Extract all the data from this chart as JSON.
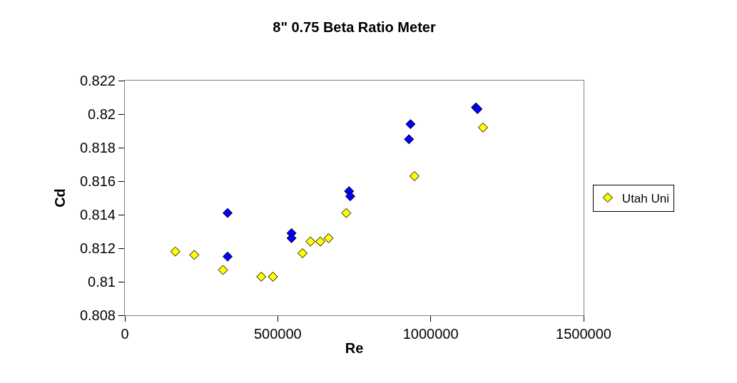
{
  "chart_data": {
    "type": "scatter",
    "title": "8\" 0.75 Beta Ratio Meter",
    "xlabel": "Re",
    "ylabel": "Cd",
    "xlim": [
      0,
      1500000
    ],
    "xticks": [
      0,
      500000,
      1000000,
      1500000
    ],
    "ylim": [
      0.808,
      0.822
    ],
    "yticks": [
      0.808,
      0.81,
      0.812,
      0.814,
      0.816,
      0.818,
      0.82,
      0.822
    ],
    "grid": false,
    "legend": "right",
    "marker": "diamond",
    "series": [
      {
        "color": "#0000ff",
        "x": [
          336000,
          336000,
          545000,
          545000,
          733000,
          737000,
          934000,
          929000,
          1148000,
          1153000
        ],
        "values": [
          0.8141,
          0.8115,
          0.8129,
          0.8126,
          0.8154,
          0.8151,
          0.8194,
          0.8185,
          0.8204,
          0.8203
        ]
      },
      {
        "name": "Utah Uni",
        "color": "#ffff00",
        "x": [
          165000,
          227000,
          321000,
          446000,
          484000,
          581000,
          607000,
          639000,
          666000,
          724000,
          947000,
          1171000
        ],
        "values": [
          0.8118,
          0.8116,
          0.8107,
          0.8103,
          0.8103,
          0.8117,
          0.8124,
          0.8124,
          0.8126,
          0.8141,
          0.8163,
          0.8192
        ]
      }
    ]
  }
}
